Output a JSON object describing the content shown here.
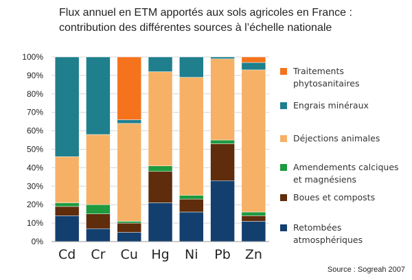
{
  "title": {
    "line1": "Flux annuel en ETM apportés aux sols agricoles en France :",
    "line2": "contribution des différentes sources à l’échelle nationale"
  },
  "source": "Source : Sogreah 2007",
  "chart_data": {
    "type": "bar",
    "stacked": true,
    "categories": [
      "Cd",
      "Cr",
      "Cu",
      "Hg",
      "Ni",
      "Pb",
      "Zn"
    ],
    "ylim": [
      0,
      100
    ],
    "yticks": [
      "0%",
      "10%",
      "20%",
      "30%",
      "40%",
      "50%",
      "60%",
      "70%",
      "80%",
      "90%",
      "100%"
    ],
    "grid": true,
    "legend_position": "right",
    "series": [
      {
        "name": "Retombées atmosphériques",
        "color": "#133f6e",
        "values": [
          14,
          7,
          5,
          21,
          16,
          33,
          11
        ]
      },
      {
        "name": "Boues et composts",
        "color": "#5f2c0c",
        "values": [
          5,
          8,
          5,
          17,
          7,
          20,
          3
        ]
      },
      {
        "name": "Amendements calciques et magnésiens",
        "color": "#1f9a3f",
        "values": [
          2,
          5,
          1,
          3,
          2,
          2,
          2
        ]
      },
      {
        "name": "Déjections animales",
        "color": "#f6b166",
        "values": [
          25,
          38,
          53,
          51,
          64,
          44,
          77
        ]
      },
      {
        "name": "Engrais minéraux",
        "color": "#1f7f8c",
        "values": [
          54,
          42,
          2,
          8,
          11,
          1,
          4
        ]
      },
      {
        "name": "Traitements phytosanitaires",
        "color": "#f5731d",
        "values": [
          0,
          0,
          34,
          0,
          0,
          0,
          3
        ]
      }
    ]
  }
}
